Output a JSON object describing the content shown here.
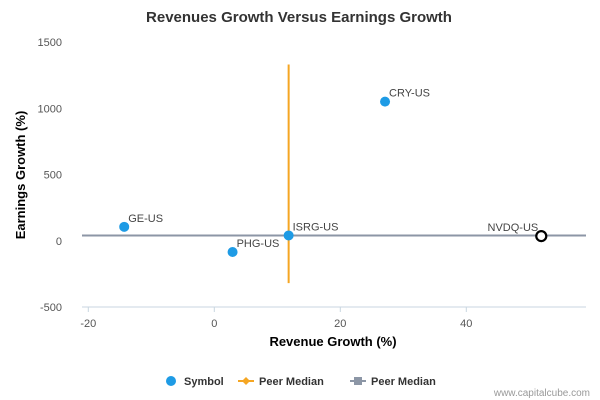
{
  "chart_data": {
    "type": "scatter",
    "title": "Revenues Growth Versus Earnings Growth",
    "xlabel": "Revenue Growth (%)",
    "ylabel": "Earnings Growth (%)",
    "xlim": [
      -21,
      59
    ],
    "ylim": [
      -500,
      1500
    ],
    "x_ticks": [
      -20,
      0,
      20,
      40
    ],
    "y_ticks": [
      -500,
      0,
      500,
      1000,
      1500
    ],
    "x_tick_labels": [
      "-20",
      "0",
      "20",
      "40"
    ],
    "y_tick_labels": [
      "-500",
      "0",
      "500",
      "1000",
      "1500"
    ],
    "grid": false,
    "legend_position": "bottom",
    "points": [
      {
        "label": "GE-US",
        "x": -14.3,
        "y": 105,
        "style": "filled"
      },
      {
        "label": "CRY-US",
        "x": 27.1,
        "y": 1050,
        "style": "filled"
      },
      {
        "label": "ISRG-US",
        "x": 11.8,
        "y": 40,
        "style": "filled"
      },
      {
        "label": "PHG-US",
        "x": 2.9,
        "y": -85,
        "style": "filled"
      },
      {
        "label": "NVDQ-US",
        "x": 51.9,
        "y": 35,
        "style": "open"
      }
    ],
    "peer_median": {
      "x": 11.8,
      "y": 40,
      "x_line_range": [
        -320,
        1330
      ]
    },
    "legend": [
      {
        "label": "Symbol",
        "marker": "circle",
        "color": "#1e9be5"
      },
      {
        "label": "Peer Median",
        "marker": "diamond-line",
        "color": "#f5a623"
      },
      {
        "label": "Peer Median",
        "marker": "square-line",
        "color": "#8c96a6"
      }
    ],
    "colors": {
      "symbol": "#1e9be5",
      "vertical_median": "#f5a623",
      "horizontal_median": "#8c96a6",
      "highlight_outline": "#000000",
      "axis": "#c8d6e0"
    }
  },
  "credit": "www.capitalcube.com"
}
